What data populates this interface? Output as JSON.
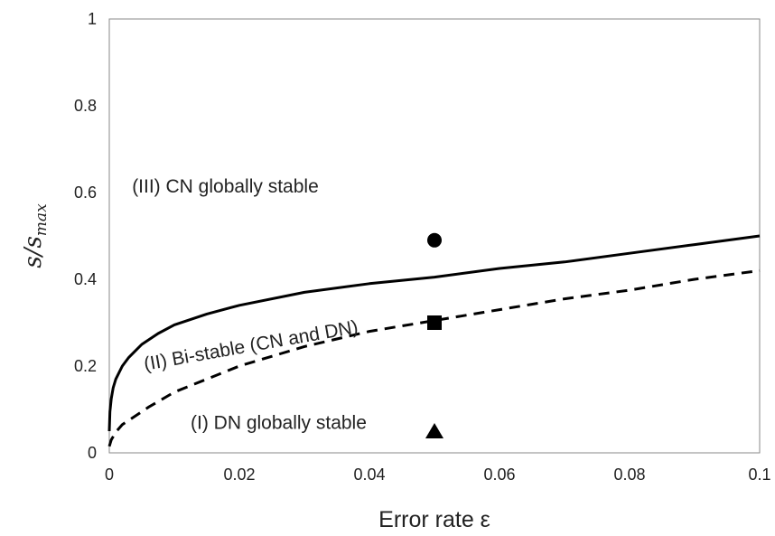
{
  "chart_data": {
    "type": "line",
    "title": "",
    "xlabel": "Error rate ε",
    "ylabel": {
      "main": "s/s",
      "subscript": "max"
    },
    "xlim": [
      0,
      0.1
    ],
    "ylim": [
      0,
      1
    ],
    "xticks": [
      0,
      0.02,
      0.04,
      0.06,
      0.08,
      0.1
    ],
    "xtick_labels": [
      "0",
      "0.02",
      "0.04",
      "0.06",
      "0.08",
      "0.1"
    ],
    "yticks": [
      0,
      0.2,
      0.4,
      0.6,
      0.8,
      1
    ],
    "ytick_labels": [
      "0",
      "0.2",
      "0.4",
      "0.6",
      "0.8",
      "1"
    ],
    "grid": false,
    "series": [
      {
        "style": "solid",
        "color": "#000000",
        "points": [
          [
            0,
            0.05
          ],
          [
            0.0001,
            0.095
          ],
          [
            0.0003,
            0.125
          ],
          [
            0.0006,
            0.15
          ],
          [
            0.001,
            0.17
          ],
          [
            0.002,
            0.2
          ],
          [
            0.003,
            0.22
          ],
          [
            0.005,
            0.25
          ],
          [
            0.0075,
            0.275
          ],
          [
            0.01,
            0.295
          ],
          [
            0.015,
            0.32
          ],
          [
            0.02,
            0.34
          ],
          [
            0.03,
            0.37
          ],
          [
            0.04,
            0.39
          ],
          [
            0.05,
            0.405
          ],
          [
            0.06,
            0.425
          ],
          [
            0.07,
            0.44
          ],
          [
            0.08,
            0.46
          ],
          [
            0.09,
            0.48
          ],
          [
            0.1,
            0.5
          ]
        ]
      },
      {
        "style": "dashed",
        "color": "#000000",
        "points": [
          [
            0,
            0.015
          ],
          [
            0.0003,
            0.03
          ],
          [
            0.001,
            0.048
          ],
          [
            0.002,
            0.065
          ],
          [
            0.004,
            0.085
          ],
          [
            0.006,
            0.105
          ],
          [
            0.01,
            0.14
          ],
          [
            0.015,
            0.17
          ],
          [
            0.02,
            0.2
          ],
          [
            0.03,
            0.245
          ],
          [
            0.04,
            0.28
          ],
          [
            0.05,
            0.305
          ],
          [
            0.06,
            0.33
          ],
          [
            0.07,
            0.355
          ],
          [
            0.08,
            0.375
          ],
          [
            0.09,
            0.4
          ],
          [
            0.1,
            0.42
          ]
        ]
      }
    ],
    "markers": [
      {
        "shape": "circle",
        "x": 0.05,
        "y": 0.49
      },
      {
        "shape": "square",
        "x": 0.05,
        "y": 0.3
      },
      {
        "shape": "triangle",
        "x": 0.05,
        "y": 0.05
      }
    ],
    "annotations": [
      {
        "text": "(III) CN globally stable",
        "x": 0.0035,
        "y": 0.6,
        "rotate": 0
      },
      {
        "text": "(II) Bi-stable (CN and DN)",
        "x": 0.0055,
        "y": 0.19,
        "rotate": -10
      },
      {
        "text": "(I) DN globally stable",
        "x": 0.0125,
        "y": 0.055,
        "rotate": 0
      }
    ]
  }
}
